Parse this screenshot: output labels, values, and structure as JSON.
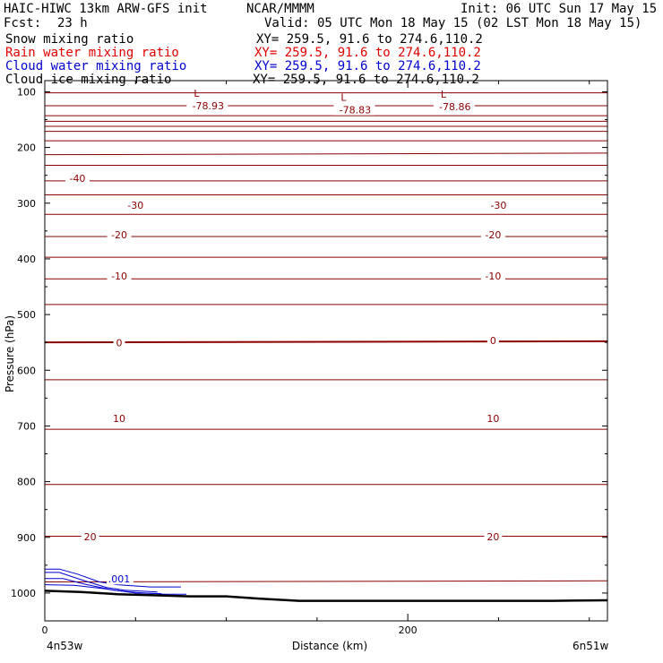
{
  "header": {
    "model": "HAIC-HIWC 13km ARW-GFS init",
    "org": "NCAR/MMMM",
    "init": "Init: 06 UTC Sun 17 May 15",
    "fcst_label": "Fcst:",
    "fcst_value": "23 h",
    "valid": "Valid: 05 UTC Mon 18 May 15 (02 LST Mon 18 May 15)"
  },
  "fields": [
    {
      "name": "Snow mixing ratio",
      "xy": "XY= 259.5, 91.6 to 274.6,110.2",
      "color": "#000000"
    },
    {
      "name": "Rain water mixing ratio",
      "xy": "XY= 259.5, 91.6 to 274.6,110.2",
      "color": "#e00000"
    },
    {
      "name": "Cloud water mixing ratio",
      "xy": "XY= 259.5, 91.6 to 274.6,110.2",
      "color": "#0000d0"
    },
    {
      "name": "Cloud ice mixing ratio",
      "xy": "XY= 259.5, 91.6 to 274.6,110.2",
      "color": "#000000"
    }
  ],
  "chart_data": {
    "type": "line",
    "title": "",
    "xlabel": "Distance (km)",
    "ylabel": "Pressure (hPa)",
    "xlim": [
      0,
      310
    ],
    "ylim": [
      1050,
      80
    ],
    "x_ticks": [
      0,
      200
    ],
    "y_ticks": [
      100,
      200,
      300,
      400,
      500,
      600,
      700,
      800,
      900,
      1000
    ],
    "x_start_label": "4n53w",
    "x_end_label": "6n51w",
    "contour_color": "#8b0000",
    "cloud_color": "#0000d0",
    "terrain_color": "#000000",
    "temperature_contours": [
      {
        "pressure": [
          102,
          102
        ],
        "label": ""
      },
      {
        "pressure": [
          125,
          125
        ],
        "label": ""
      },
      {
        "pressure": [
          143,
          143
        ],
        "label": ""
      },
      {
        "pressure": [
          153,
          153
        ],
        "label": ""
      },
      {
        "pressure": [
          162,
          162
        ],
        "label": ""
      },
      {
        "pressure": [
          171,
          171
        ],
        "label": ""
      },
      {
        "pressure": [
          188,
          188
        ],
        "label": ""
      },
      {
        "pressure": [
          213,
          210
        ],
        "label": ""
      },
      {
        "pressure": [
          232,
          232
        ],
        "label": "-40"
      },
      {
        "pressure": [
          260,
          260
        ],
        "label": ""
      },
      {
        "pressure": [
          285,
          285
        ],
        "label": "-30"
      },
      {
        "pressure": [
          320,
          320
        ],
        "label": ""
      },
      {
        "pressure": [
          360,
          360
        ],
        "label": "-20"
      },
      {
        "pressure": [
          397,
          397
        ],
        "label": ""
      },
      {
        "pressure": [
          436,
          436
        ],
        "label": "-10"
      },
      {
        "pressure": [
          482,
          482
        ],
        "label": ""
      },
      {
        "pressure": [
          550,
          548
        ],
        "label": "0"
      },
      {
        "pressure": [
          617,
          617
        ],
        "label": ""
      },
      {
        "pressure": [
          706,
          706
        ],
        "label": "10"
      },
      {
        "pressure": [
          805,
          805
        ],
        "label": ""
      },
      {
        "pressure": [
          898,
          898
        ],
        "label": "20"
      },
      {
        "pressure": [
          980,
          978
        ],
        "label": ""
      }
    ],
    "contour_labels": [
      {
        "x": 18,
        "p": 257,
        "text": "-40"
      },
      {
        "x": 50,
        "p": 305,
        "text": "-30"
      },
      {
        "x": 250,
        "p": 305,
        "text": "-30"
      },
      {
        "x": 41,
        "p": 358,
        "text": "-20"
      },
      {
        "x": 247,
        "p": 358,
        "text": "-20"
      },
      {
        "x": 41,
        "p": 432,
        "text": "-10"
      },
      {
        "x": 247,
        "p": 432,
        "text": "-10"
      },
      {
        "x": 41,
        "p": 552,
        "text": "0"
      },
      {
        "x": 247,
        "p": 548,
        "text": "0"
      },
      {
        "x": 41,
        "p": 688,
        "text": "10"
      },
      {
        "x": 247,
        "p": 688,
        "text": "10"
      },
      {
        "x": 25,
        "p": 900,
        "text": "20"
      },
      {
        "x": 247,
        "p": 900,
        "text": "20"
      }
    ],
    "minima": [
      {
        "x": 90,
        "p": 119,
        "value": "-78.93"
      },
      {
        "x": 171,
        "p": 126,
        "value": "-78.83"
      },
      {
        "x": 226,
        "p": 120,
        "value": "-78.86"
      }
    ],
    "cloud_label": {
      "x": 41,
      "p": 978,
      "text": ".001"
    },
    "terrain": {
      "x": [
        0,
        20,
        40,
        60,
        80,
        100,
        118,
        140,
        160,
        200,
        240,
        280,
        310
      ],
      "p": [
        996,
        998,
        1002,
        1004,
        1006,
        1006,
        1010,
        1014,
        1014,
        1014,
        1014,
        1014,
        1013
      ]
    },
    "cloud_water_contours": [
      {
        "x": [
          0,
          8,
          18,
          30,
          40,
          58,
          75
        ],
        "p": [
          957,
          957,
          966,
          980,
          985,
          989,
          989
        ]
      },
      {
        "x": [
          0,
          8,
          20,
          34,
          44,
          62
        ],
        "p": [
          963,
          963,
          976,
          990,
          995,
          998
        ]
      },
      {
        "x": [
          0,
          10,
          22,
          38,
          50,
          66,
          78
        ],
        "p": [
          974,
          974,
          984,
          995,
          999,
          1002,
          1002
        ]
      },
      {
        "x": [
          0,
          16,
          32,
          50,
          64
        ],
        "p": [
          985,
          986,
          992,
          1000,
          1001
        ]
      }
    ]
  }
}
